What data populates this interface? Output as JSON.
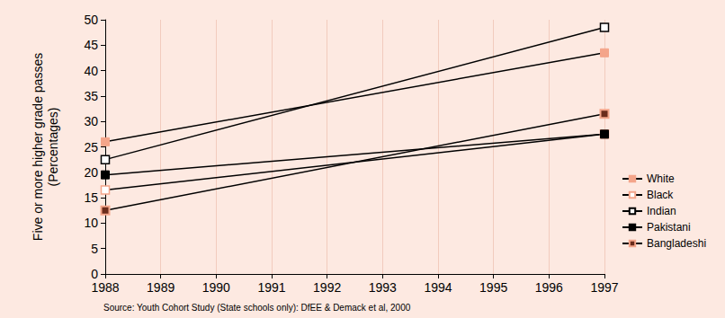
{
  "chart_data": {
    "type": "line",
    "ylabel": "Five or more higher grade passes\n(Percentages)",
    "source": "Source: Youth Cohort Study (State schools only): DfEE & Demack et al, 2000",
    "x": [
      1988,
      1997
    ],
    "xlim": [
      1988,
      1997
    ],
    "xticks": [
      1988,
      1989,
      1990,
      1991,
      1992,
      1993,
      1994,
      1995,
      1996,
      1997
    ],
    "ylim": [
      0,
      50
    ],
    "yticks": [
      0,
      5,
      10,
      15,
      20,
      25,
      30,
      35,
      40,
      45,
      50
    ],
    "grid": true,
    "legend": "right",
    "series": [
      {
        "name": "White",
        "color": "#f4a58a",
        "marker": "square",
        "values": [
          26,
          43.5
        ]
      },
      {
        "name": "Black",
        "color": "#f4a58a",
        "marker": "hollow_square",
        "values": [
          16.5,
          27.5
        ]
      },
      {
        "name": "Indian",
        "color": "#000000",
        "marker": "hollow_square",
        "values": [
          22.5,
          48.5
        ]
      },
      {
        "name": "Pakistani",
        "color": "#000000",
        "marker": "square",
        "values": [
          19.5,
          27.5
        ]
      },
      {
        "name": "Bangladeshi",
        "color": "#6b2c1c",
        "marker": "square",
        "values": [
          12.5,
          31.5
        ]
      }
    ]
  }
}
